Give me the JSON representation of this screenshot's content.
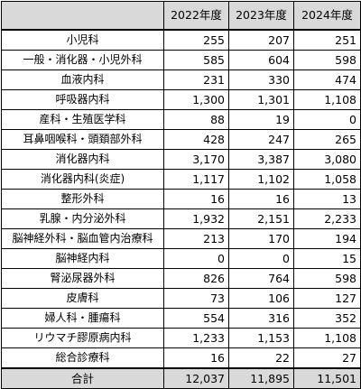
{
  "table": {
    "columns": [
      "",
      "2022年度",
      "2023年度",
      "2024年度"
    ],
    "rows": [
      {
        "dept": "小児科",
        "y2022": "255",
        "y2023": "207",
        "y2024": "251"
      },
      {
        "dept": "一般・消化器・小児外科",
        "y2022": "585",
        "y2023": "604",
        "y2024": "598"
      },
      {
        "dept": "血液内科",
        "y2022": "231",
        "y2023": "330",
        "y2024": "474"
      },
      {
        "dept": "呼吸器内科",
        "y2022": "1,300",
        "y2023": "1,301",
        "y2024": "1,108"
      },
      {
        "dept": "産科・生殖医学科",
        "y2022": "88",
        "y2023": "19",
        "y2024": "0"
      },
      {
        "dept": "耳鼻咽喉科・頭頚部外科",
        "y2022": "428",
        "y2023": "247",
        "y2024": "265"
      },
      {
        "dept": "消化器内科",
        "y2022": "3,170",
        "y2023": "3,387",
        "y2024": "3,080"
      },
      {
        "dept": "消化器内科(炎症)",
        "y2022": "1,117",
        "y2023": "1,102",
        "y2024": "1,058"
      },
      {
        "dept": "整形外科",
        "y2022": "16",
        "y2023": "16",
        "y2024": "13"
      },
      {
        "dept": "乳腺・内分泌外科",
        "y2022": "1,932",
        "y2023": "2,151",
        "y2024": "2,233"
      },
      {
        "dept": "脳神経外科・脳血管内治療科",
        "y2022": "213",
        "y2023": "170",
        "y2024": "194"
      },
      {
        "dept": "脳神経内科",
        "y2022": "0",
        "y2023": "0",
        "y2024": "15"
      },
      {
        "dept": "腎泌尿器外科",
        "y2022": "826",
        "y2023": "764",
        "y2024": "598"
      },
      {
        "dept": "皮膚科",
        "y2022": "73",
        "y2023": "106",
        "y2024": "127"
      },
      {
        "dept": "婦人科・腫瘍科",
        "y2022": "554",
        "y2023": "316",
        "y2024": "352"
      },
      {
        "dept": "リウマチ膠原病内科",
        "y2022": "1,233",
        "y2023": "1,153",
        "y2024": "1,108"
      },
      {
        "dept": "総合診療科",
        "y2022": "16",
        "y2023": "22",
        "y2024": "27"
      }
    ],
    "total": {
      "label": "合計",
      "y2022": "12,037",
      "y2023": "11,895",
      "y2024": "11,501"
    }
  },
  "colors": {
    "header_bg": "#d9d9d9",
    "border": "#000000",
    "body_bg": "#ffffff"
  }
}
